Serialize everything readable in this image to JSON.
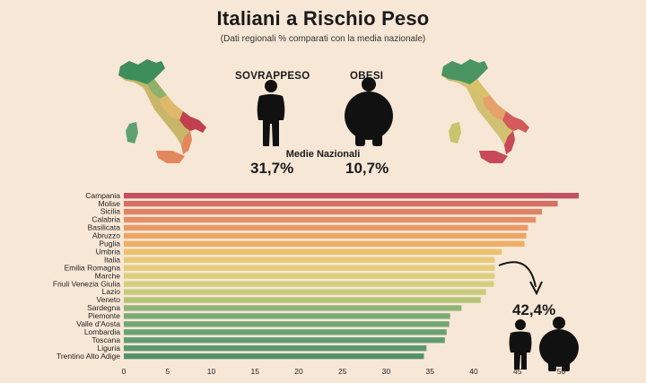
{
  "header": {
    "title": "Italiani a Rischio Peso",
    "subtitle": "(Dati regionali % comparati con la media nazionale)"
  },
  "figures": {
    "overweight_label": "SOVRAPPESO",
    "obese_label": "OBESI",
    "national_label": "Medie Nazionali",
    "overweight_value": "31,7%",
    "obese_value": "10,7%",
    "callout_value": "42,4%"
  },
  "colors": {
    "background": "#f7e7d6",
    "map_dark_green": "#3e8e5c",
    "map_mid": "#d9c16a",
    "map_red": "#c0404e",
    "arrow": "#111111"
  },
  "icons": [
    "overweight-person-icon",
    "obese-person-icon",
    "italy-map-icon",
    "curved-arrow-icon"
  ],
  "chart_data": {
    "type": "bar",
    "orientation": "horizontal",
    "categories": [
      "Campania",
      "Molise",
      "Sicilia",
      "Calabria",
      "Basilicata",
      "Abruzzo",
      "Puglia",
      "Umbria",
      "Italia",
      "Emilia Romagna",
      "Marche",
      "Friuli Venezia Giulia",
      "Lazio",
      "Veneto",
      "Sardegna",
      "Piemonte",
      "Valle d'Aosta",
      "Lombardia",
      "Toscana",
      "Liguria",
      "Trentino Alto Adige"
    ],
    "values": [
      52.0,
      49.6,
      47.8,
      47.1,
      46.2,
      46.0,
      45.8,
      43.2,
      42.4,
      42.4,
      42.4,
      42.3,
      41.4,
      40.8,
      38.6,
      37.3,
      37.2,
      36.9,
      36.7,
      34.6,
      34.3
    ],
    "bar_colors": [
      "#c1525f",
      "#d56f63",
      "#df8366",
      "#e48f67",
      "#e99a67",
      "#eda567",
      "#f0ae66",
      "#ecc06d",
      "#e7ca78",
      "#e3ce7a",
      "#dccf7b",
      "#d3cf7c",
      "#c6cc7a",
      "#b4c477",
      "#8fb476",
      "#7bab76",
      "#73a674",
      "#6aa172",
      "#629d6f",
      "#5b986d",
      "#54926a"
    ],
    "xticks": [
      0,
      5,
      10,
      15,
      20,
      25,
      30,
      35,
      40,
      45,
      50
    ],
    "xlim": [
      0,
      53
    ]
  }
}
